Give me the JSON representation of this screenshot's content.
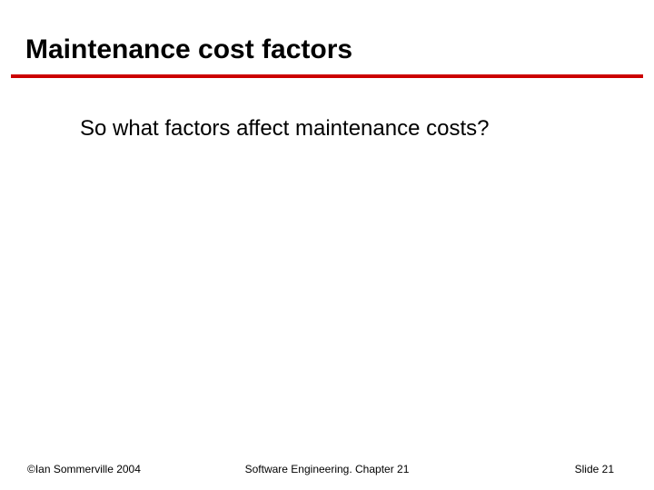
{
  "slide": {
    "title": "Maintenance cost factors",
    "body_text": "So what factors affect maintenance costs?",
    "underline_color": "#cc0000",
    "title_fontsize": 30,
    "body_fontsize": 24,
    "background_color": "#ffffff"
  },
  "footer": {
    "left": "©Ian Sommerville 2004",
    "center": "Software Engineering. Chapter 21",
    "right": "Slide 21",
    "fontsize": 12
  }
}
